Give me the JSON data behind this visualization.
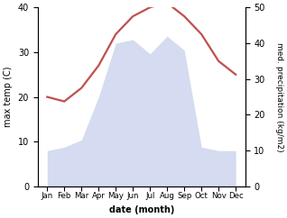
{
  "months": [
    "Jan",
    "Feb",
    "Mar",
    "Apr",
    "May",
    "Jun",
    "Jul",
    "Aug",
    "Sep",
    "Oct",
    "Nov",
    "Dec"
  ],
  "temperature": [
    20,
    19,
    22,
    27,
    34,
    38,
    40,
    41,
    38,
    34,
    28,
    25
  ],
  "precipitation": [
    10,
    11,
    13,
    25,
    40,
    41,
    37,
    42,
    38,
    11,
    10,
    10
  ],
  "temp_color": "#c0504d",
  "precip_color": "#adb9e3",
  "ylim_temp": [
    0,
    40
  ],
  "ylim_precip": [
    0,
    50
  ],
  "yticks_temp": [
    0,
    10,
    20,
    30,
    40
  ],
  "yticks_precip": [
    0,
    10,
    20,
    30,
    40,
    50
  ],
  "ylabel_left": "max temp (C)",
  "ylabel_right": "med. precipitation (kg/m2)",
  "xlabel": "date (month)",
  "bg_color": "#ffffff",
  "temp_linewidth": 1.6,
  "precip_alpha": 0.5
}
